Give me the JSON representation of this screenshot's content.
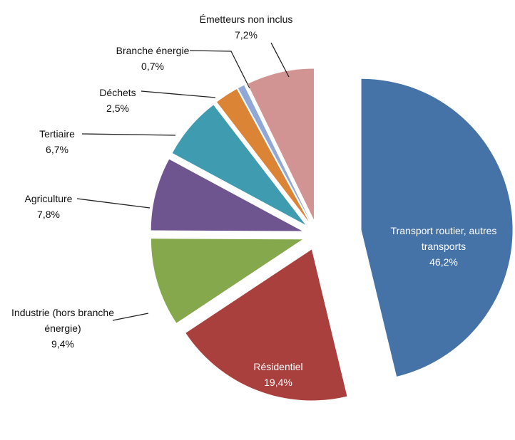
{
  "chart_data": {
    "type": "pie",
    "categories": [
      "Transport routier, autres transports",
      "Résidentiel",
      "Industrie (hors branche énergie)",
      "Agriculture",
      "Tertiaire",
      "Déchets",
      "Branche énergie",
      "Émetteurs non inclus"
    ],
    "values": [
      46.2,
      19.4,
      9.4,
      7.8,
      6.7,
      2.5,
      0.7,
      7.2
    ],
    "value_labels": [
      "46,2%",
      "19,4%",
      "9,4%",
      "7,8%",
      "6,7%",
      "2,5%",
      "0,7%",
      "7,2%"
    ],
    "colors": [
      "#4573a7",
      "#a9403e",
      "#86a84c",
      "#6e558f",
      "#3f9bb0",
      "#db8435",
      "#8fa8d8",
      "#d19493"
    ]
  }
}
